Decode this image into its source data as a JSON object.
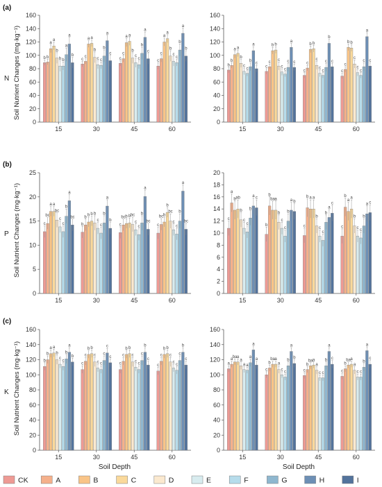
{
  "chart_data": {
    "categories": [
      "15",
      "30",
      "45",
      "60"
    ],
    "series_names": [
      "CK",
      "A",
      "B",
      "C",
      "D",
      "E",
      "F",
      "G",
      "H",
      "I"
    ],
    "colors": [
      "#ee9a94",
      "#f5b08b",
      "#f9c487",
      "#fad99b",
      "#fbe9cf",
      "#d8ecef",
      "#b6dceb",
      "#8fb7cf",
      "#6d8fb5",
      "#53739c"
    ],
    "xlabel": "Soil Depth",
    "ylabel": "Soil Nutrient Changes (mg·kg⁻¹)",
    "rows": [
      {
        "panel_label": "(a)",
        "row_label": "N"
      },
      {
        "panel_label": "(b)",
        "row_label": "P"
      },
      {
        "panel_label": "(c)",
        "row_label": "K"
      }
    ],
    "panels": [
      {
        "id": "N-left",
        "type": "bar",
        "ylim": [
          0,
          160
        ],
        "yticks": [
          0,
          20,
          40,
          60,
          80,
          100,
          120,
          140,
          160
        ],
        "values": [
          [
            89,
            90,
            110,
            114,
            96,
            84,
            84,
            101,
            117,
            89
          ],
          [
            87,
            91,
            117,
            118,
            97,
            86,
            85,
            99,
            122,
            92
          ],
          [
            88,
            95,
            119,
            121,
            96,
            89,
            86,
            103,
            127,
            95
          ],
          [
            84,
            95,
            120,
            125,
            99,
            91,
            89,
            108,
            133,
            99
          ]
        ],
        "errors": [
          [
            4,
            4,
            6,
            6,
            8,
            8,
            6,
            10,
            10,
            8
          ],
          [
            4,
            4,
            5,
            5,
            8,
            6,
            5,
            9,
            8,
            8
          ],
          [
            4,
            5,
            6,
            6,
            8,
            7,
            6,
            9,
            8,
            8
          ],
          [
            5,
            5,
            6,
            6,
            8,
            7,
            5,
            9,
            8,
            8
          ]
        ],
        "letters": [
          [
            "b",
            "b",
            "a",
            "a",
            "b",
            "b",
            "b",
            "a",
            "a",
            "b"
          ],
          [
            "c",
            "c",
            "a",
            "a",
            "b",
            "c",
            "c",
            "b",
            "a",
            "c"
          ],
          [
            "c",
            "c",
            "a",
            "a",
            "b",
            "c",
            "c",
            "b",
            "a",
            "c"
          ],
          [
            "c",
            "c",
            "a",
            "a",
            "b",
            "c",
            "c",
            "b",
            "a",
            "b"
          ]
        ]
      },
      {
        "id": "N-right",
        "type": "bar",
        "ylim": [
          0,
          160
        ],
        "yticks": [
          0,
          20,
          40,
          60,
          80,
          100,
          120,
          140,
          160
        ],
        "values": [
          [
            78,
            85,
            101,
            103,
            88,
            76,
            73,
            83,
            107,
            80
          ],
          [
            76,
            83,
            107,
            108,
            84,
            75,
            72,
            82,
            112,
            82
          ],
          [
            70,
            81,
            109,
            110,
            85,
            73,
            70,
            82,
            118,
            83
          ],
          [
            69,
            79,
            112,
            111,
            87,
            74,
            70,
            83,
            128,
            84
          ]
        ],
        "errors": [
          [
            4,
            4,
            5,
            5,
            6,
            5,
            4,
            6,
            6,
            5
          ],
          [
            4,
            4,
            5,
            5,
            6,
            5,
            4,
            6,
            6,
            5
          ],
          [
            4,
            4,
            5,
            5,
            6,
            5,
            4,
            6,
            6,
            5
          ],
          [
            4,
            4,
            5,
            5,
            6,
            5,
            4,
            6,
            6,
            5
          ]
        ],
        "letters": [
          [
            "b",
            "b",
            "a",
            "a",
            "b",
            "c",
            "c",
            "b",
            "a",
            "c"
          ],
          [
            "c",
            "c",
            "b",
            "b",
            "c",
            "c",
            "c",
            "c",
            "a",
            "c"
          ],
          [
            "c",
            "c",
            "b",
            "b",
            "c",
            "c",
            "c",
            "c",
            "b",
            "c"
          ],
          [
            "c",
            "c",
            "b",
            "b",
            "c",
            "c",
            "c",
            "c",
            "a",
            "c"
          ]
        ]
      },
      {
        "id": "P-left",
        "type": "bar",
        "ylim": [
          0,
          25
        ],
        "yticks": [
          0,
          5,
          10,
          15,
          20,
          25
        ],
        "values": [
          [
            12.8,
            14.5,
            17.0,
            17.0,
            15.2,
            13.8,
            12.8,
            16.0,
            19.2,
            14.2
          ],
          [
            12.7,
            14.2,
            14.8,
            15.0,
            14.6,
            13.5,
            12.5,
            14.6,
            18.1,
            13.5
          ],
          [
            12.6,
            14.2,
            14.5,
            14.6,
            14.3,
            13.2,
            12.2,
            14.6,
            20.1,
            13.3
          ],
          [
            12.5,
            14.3,
            14.8,
            16.8,
            15.0,
            13.2,
            12.3,
            15.0,
            21.2,
            13.3
          ]
        ],
        "errors": [
          [
            1.2,
            1.2,
            1.0,
            1.0,
            1.5,
            1.2,
            1.2,
            1.5,
            1.3,
            1.2
          ],
          [
            1.2,
            1.2,
            1.0,
            1.0,
            1.5,
            1.2,
            1.2,
            1.5,
            1.3,
            1.2
          ],
          [
            1.2,
            1.2,
            1.0,
            1.0,
            1.5,
            1.2,
            1.2,
            1.5,
            1.3,
            1.2
          ],
          [
            1.2,
            1.2,
            1.0,
            1.0,
            1.5,
            1.2,
            1.2,
            1.5,
            1.3,
            1.2
          ]
        ],
        "letters": [
          [
            "c",
            "bc",
            "a",
            "a",
            "bc",
            "c",
            "c",
            "b",
            "a",
            "bc"
          ],
          [
            "b",
            "b",
            "b",
            "b",
            "b",
            "c",
            "c",
            "b",
            "a",
            "b"
          ],
          [
            "c",
            "bc",
            "b",
            "b",
            "bc",
            "c",
            "c",
            "b",
            "a",
            "bc"
          ],
          [
            "c",
            "bc",
            "b",
            "b",
            "bc",
            "c",
            "c",
            "b",
            "a",
            "bc"
          ]
        ]
      },
      {
        "id": "P-right",
        "type": "bar",
        "ylim": [
          0,
          20
        ],
        "yticks": [
          0,
          2,
          4,
          6,
          8,
          10,
          12,
          14,
          16,
          18,
          20
        ],
        "values": [
          [
            10.8,
            15.0,
            13.8,
            14.0,
            12.2,
            10.8,
            10.2,
            12.5,
            14.5,
            14.2
          ],
          [
            9.8,
            14.5,
            13.8,
            13.8,
            11.8,
            10.8,
            9.5,
            12.0,
            13.8,
            13.6
          ],
          [
            9.6,
            14.2,
            14.0,
            14.0,
            11.2,
            9.5,
            8.8,
            11.8,
            12.6,
            13.3
          ],
          [
            9.5,
            14.3,
            13.6,
            14.0,
            11.2,
            9.5,
            9.2,
            11.2,
            13.2,
            13.4
          ]
        ],
        "errors": [
          [
            1.2,
            1.5,
            1.5,
            1.5,
            1.2,
            1.0,
            1.0,
            1.2,
            1.3,
            1.3
          ],
          [
            1.2,
            1.5,
            1.5,
            1.5,
            1.2,
            1.0,
            1.0,
            1.2,
            1.3,
            1.3
          ],
          [
            1.2,
            1.5,
            1.5,
            1.5,
            1.2,
            1.0,
            1.0,
            1.2,
            1.3,
            1.3
          ],
          [
            1.2,
            1.5,
            1.5,
            1.5,
            1.2,
            1.0,
            1.0,
            1.2,
            1.3,
            1.3
          ]
        ],
        "letters": [
          [
            "c",
            "a",
            "b",
            "ab",
            "b",
            "c",
            "c",
            "b",
            "a",
            "c"
          ],
          [
            "b",
            "b",
            "ba",
            "a",
            "b",
            "c",
            "c",
            "b",
            "a",
            "b"
          ],
          [
            "c",
            "b",
            "a",
            "a",
            "b",
            "c",
            "c",
            "b",
            "a",
            "c"
          ],
          [
            "c",
            "b",
            "a",
            "a",
            "b",
            "c",
            "c",
            "b",
            "a",
            "c"
          ]
        ]
      },
      {
        "id": "K-left",
        "type": "bar",
        "ylim": [
          0,
          160
        ],
        "yticks": [
          0,
          20,
          40,
          60,
          80,
          100,
          120,
          140,
          160
        ],
        "values": [
          [
            111,
            120,
            128,
            129,
            120,
            114,
            111,
            121,
            130,
            117
          ],
          [
            107,
            118,
            127,
            128,
            117,
            109,
            107,
            119,
            129,
            116
          ],
          [
            107,
            118,
            127,
            128,
            117,
            110,
            107,
            119,
            130,
            113
          ],
          [
            105,
            118,
            127,
            128,
            117,
            109,
            106,
            119,
            130,
            113
          ]
        ],
        "errors": [
          [
            5,
            5,
            5,
            5,
            6,
            5,
            5,
            6,
            6,
            5
          ],
          [
            5,
            5,
            5,
            5,
            6,
            5,
            5,
            6,
            6,
            5
          ],
          [
            5,
            5,
            5,
            5,
            6,
            5,
            5,
            6,
            6,
            5
          ],
          [
            5,
            5,
            5,
            5,
            6,
            5,
            5,
            6,
            6,
            5
          ]
        ],
        "letters": [
          [
            "b",
            "b",
            "a",
            "a",
            "b",
            "c",
            "c",
            "b",
            "a",
            "b"
          ],
          [
            "c",
            "c",
            "b",
            "b",
            "c",
            "c",
            "c",
            "c",
            "c",
            "c"
          ],
          [
            "c",
            "c",
            "b",
            "b",
            "c",
            "c",
            "c",
            "c",
            "b",
            "c"
          ],
          [
            "c",
            "c",
            "b",
            "b",
            "c",
            "c",
            "c",
            "c",
            "b",
            "c"
          ]
        ]
      },
      {
        "id": "K-right",
        "type": "bar",
        "ylim": [
          0,
          160
        ],
        "yticks": [
          0,
          20,
          40,
          60,
          80,
          100,
          120,
          140,
          160
        ],
        "values": [
          [
            108,
            114,
            117,
            117,
            112,
            107,
            106,
            116,
            133,
            113
          ],
          [
            100,
            109,
            114,
            114,
            107,
            100,
            97,
            112,
            131,
            115
          ],
          [
            99,
            107,
            112,
            113,
            106,
            96,
            96,
            112,
            131,
            114
          ],
          [
            98,
            108,
            113,
            114,
            106,
            97,
            97,
            110,
            132,
            114
          ]
        ],
        "errors": [
          [
            4,
            4,
            4,
            4,
            5,
            4,
            4,
            5,
            5,
            5
          ],
          [
            4,
            4,
            4,
            4,
            5,
            4,
            4,
            5,
            5,
            5
          ],
          [
            4,
            4,
            4,
            4,
            5,
            4,
            4,
            5,
            5,
            5
          ],
          [
            4,
            4,
            4,
            4,
            5,
            4,
            4,
            5,
            5,
            5
          ]
        ],
        "letters": [
          [
            "a",
            "a",
            "ba",
            "a",
            "a",
            "a",
            "a",
            "a",
            "a",
            "a"
          ],
          [
            "c",
            "b",
            "ba",
            "a",
            "a",
            "c",
            "c",
            "b",
            "a",
            "b"
          ],
          [
            "c",
            "b",
            "ba",
            "a",
            "a",
            "c",
            "c",
            "b",
            "a",
            "c"
          ],
          [
            "c",
            "b",
            "ba",
            "a",
            "a",
            "c",
            "c",
            "b",
            "a",
            "c"
          ]
        ]
      }
    ]
  }
}
